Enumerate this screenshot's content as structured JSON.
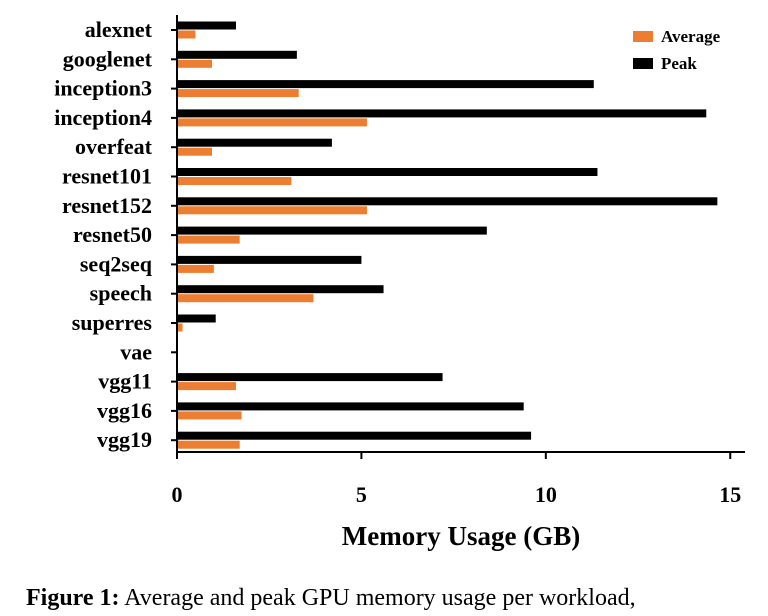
{
  "chart_data": {
    "type": "bar",
    "orientation": "horizontal",
    "categories": [
      "alexnet",
      "googlenet",
      "inception3",
      "inception4",
      "overfeat",
      "resnet101",
      "resnet152",
      "resnet50",
      "seq2seq",
      "speech",
      "superres",
      "vae",
      "vgg11",
      "vgg16",
      "vgg19"
    ],
    "series": [
      {
        "name": "Average",
        "color": "#ed7d31",
        "values": [
          0.5,
          0.95,
          3.3,
          5.15,
          0.95,
          3.1,
          5.15,
          1.7,
          1.0,
          3.7,
          0.15,
          0.0,
          1.6,
          1.75,
          1.7
        ]
      },
      {
        "name": "Peak",
        "color": "#000000",
        "values": [
          1.6,
          3.25,
          11.3,
          14.35,
          4.2,
          11.4,
          14.65,
          8.4,
          5.0,
          5.6,
          1.05,
          0.0,
          7.2,
          9.4,
          9.6
        ]
      }
    ],
    "xlabel": "Memory Usage (GB)",
    "ylabel": "",
    "xlim": [
      0,
      15.4
    ],
    "xticks": [
      0,
      5,
      10,
      15
    ],
    "grid": false,
    "legend_position": "top-right"
  },
  "caption": {
    "label": "Figure 1:",
    "text": "Average and peak GPU memory usage per workload,"
  }
}
